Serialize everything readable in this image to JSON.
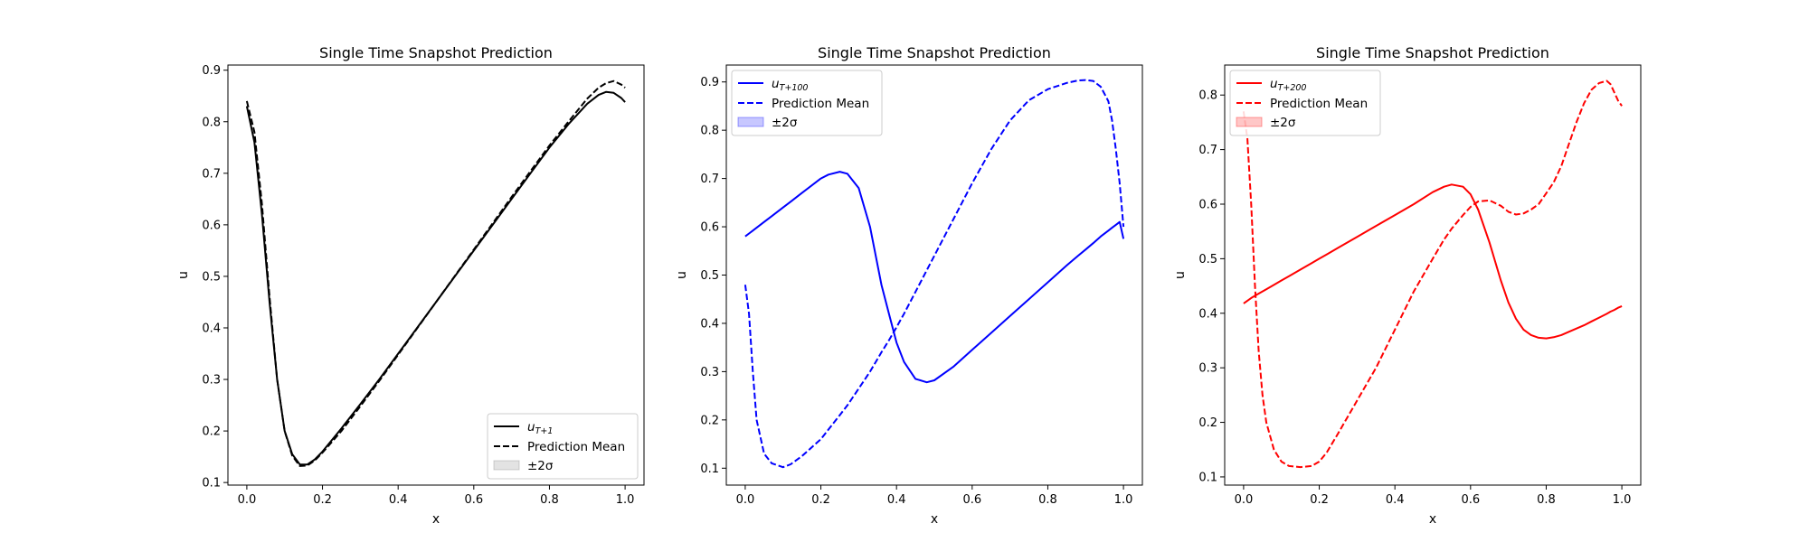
{
  "chart_data": [
    {
      "type": "line",
      "title": "Single Time Snapshot Prediction",
      "xlabel": "x",
      "ylabel": "u",
      "xlim": [
        -0.05,
        1.05
      ],
      "ylim": [
        0.095,
        0.91
      ],
      "xticks": [
        "0.0",
        "0.2",
        "0.4",
        "0.6",
        "0.8",
        "1.0"
      ],
      "yticks": [
        "0.1",
        "0.2",
        "0.3",
        "0.4",
        "0.5",
        "0.6",
        "0.7",
        "0.8",
        "0.9"
      ],
      "color": "#000000",
      "band_color": "#808080",
      "legend_loc": "lower-right",
      "legend": {
        "truth_base": "u",
        "truth_sub": "T+1",
        "mean": "Prediction Mean",
        "band": "±2σ"
      },
      "x": [
        0,
        0.02,
        0.04,
        0.06,
        0.08,
        0.1,
        0.12,
        0.14,
        0.16,
        0.18,
        0.2,
        0.25,
        0.3,
        0.35,
        0.4,
        0.45,
        0.5,
        0.55,
        0.6,
        0.65,
        0.7,
        0.75,
        0.8,
        0.85,
        0.9,
        0.93,
        0.95,
        0.97,
        0.99,
        1.0
      ],
      "series": [
        {
          "role": "truth",
          "values": [
            0.83,
            0.76,
            0.62,
            0.45,
            0.3,
            0.2,
            0.155,
            0.135,
            0.135,
            0.145,
            0.16,
            0.205,
            0.252,
            0.3,
            0.35,
            0.4,
            0.45,
            0.5,
            0.55,
            0.6,
            0.65,
            0.7,
            0.75,
            0.795,
            0.835,
            0.852,
            0.858,
            0.856,
            0.846,
            0.838
          ]
        },
        {
          "role": "mean",
          "values": [
            0.84,
            0.78,
            0.64,
            0.46,
            0.3,
            0.2,
            0.152,
            0.132,
            0.133,
            0.143,
            0.158,
            0.2,
            0.248,
            0.297,
            0.348,
            0.399,
            0.45,
            0.501,
            0.552,
            0.603,
            0.654,
            0.704,
            0.754,
            0.8,
            0.845,
            0.866,
            0.875,
            0.879,
            0.872,
            0.866
          ]
        }
      ]
    },
    {
      "type": "line",
      "title": "Single Time Snapshot Prediction",
      "xlabel": "x",
      "ylabel": "u",
      "xlim": [
        -0.05,
        1.05
      ],
      "ylim": [
        0.065,
        0.935
      ],
      "xticks": [
        "0.0",
        "0.2",
        "0.4",
        "0.6",
        "0.8",
        "1.0"
      ],
      "yticks": [
        "0.1",
        "0.2",
        "0.3",
        "0.4",
        "0.5",
        "0.6",
        "0.7",
        "0.8",
        "0.9"
      ],
      "color": "#0000ff",
      "band_color": "#0000ff",
      "legend_loc": "upper-left",
      "legend": {
        "truth_base": "u",
        "truth_sub": "T+100",
        "mean": "Prediction Mean",
        "band": "±2σ"
      },
      "x": [
        0,
        0.01,
        0.02,
        0.03,
        0.05,
        0.07,
        0.1,
        0.12,
        0.15,
        0.2,
        0.22,
        0.25,
        0.27,
        0.3,
        0.33,
        0.36,
        0.38,
        0.4,
        0.42,
        0.45,
        0.48,
        0.5,
        0.55,
        0.6,
        0.65,
        0.7,
        0.75,
        0.8,
        0.85,
        0.88,
        0.9,
        0.92,
        0.94,
        0.96,
        0.97,
        0.98,
        0.99,
        1.0
      ],
      "series": [
        {
          "role": "truth",
          "values": [
            0.58,
            0.586,
            0.592,
            0.598,
            0.61,
            0.622,
            0.64,
            0.652,
            0.67,
            0.7,
            0.708,
            0.714,
            0.71,
            0.68,
            0.6,
            0.48,
            0.42,
            0.36,
            0.32,
            0.285,
            0.278,
            0.282,
            0.31,
            0.345,
            0.38,
            0.415,
            0.45,
            0.485,
            0.52,
            0.54,
            0.553,
            0.566,
            0.58,
            0.592,
            0.598,
            0.604,
            0.61,
            0.575
          ]
        },
        {
          "role": "mean",
          "values": [
            0.48,
            0.42,
            0.3,
            0.2,
            0.13,
            0.11,
            0.102,
            0.108,
            0.125,
            0.16,
            0.18,
            0.21,
            0.23,
            0.265,
            0.3,
            0.34,
            0.365,
            0.392,
            0.42,
            0.465,
            0.51,
            0.54,
            0.615,
            0.69,
            0.76,
            0.82,
            0.862,
            0.885,
            0.898,
            0.903,
            0.904,
            0.902,
            0.89,
            0.86,
            0.82,
            0.76,
            0.69,
            0.6
          ]
        }
      ]
    },
    {
      "type": "line",
      "title": "Single Time Snapshot Prediction",
      "xlabel": "x",
      "ylabel": "u",
      "xlim": [
        -0.05,
        1.05
      ],
      "ylim": [
        0.085,
        0.855
      ],
      "xticks": [
        "0.0",
        "0.2",
        "0.4",
        "0.6",
        "0.8",
        "1.0"
      ],
      "yticks": [
        "0.1",
        "0.2",
        "0.3",
        "0.4",
        "0.5",
        "0.6",
        "0.7",
        "0.8"
      ],
      "color": "#ff0000",
      "band_color": "#ff0000",
      "legend_loc": "upper-left",
      "legend": {
        "truth_base": "u",
        "truth_sub": "T+200",
        "mean": "Prediction Mean",
        "band": "±2σ"
      },
      "x": [
        0,
        0.01,
        0.02,
        0.03,
        0.04,
        0.05,
        0.06,
        0.08,
        0.1,
        0.12,
        0.15,
        0.18,
        0.2,
        0.22,
        0.25,
        0.3,
        0.35,
        0.4,
        0.45,
        0.5,
        0.53,
        0.55,
        0.58,
        0.6,
        0.62,
        0.65,
        0.68,
        0.7,
        0.72,
        0.74,
        0.76,
        0.78,
        0.8,
        0.82,
        0.84,
        0.86,
        0.88,
        0.9,
        0.92,
        0.94,
        0.96,
        0.97,
        0.98,
        0.99,
        1.0
      ],
      "series": [
        {
          "role": "truth",
          "values": [
            0.418,
            0.423,
            0.428,
            0.432,
            0.436,
            0.44,
            0.444,
            0.452,
            0.46,
            0.468,
            0.48,
            0.492,
            0.5,
            0.508,
            0.52,
            0.54,
            0.56,
            0.58,
            0.6,
            0.622,
            0.632,
            0.636,
            0.632,
            0.618,
            0.59,
            0.53,
            0.46,
            0.42,
            0.39,
            0.37,
            0.36,
            0.355,
            0.354,
            0.356,
            0.36,
            0.366,
            0.372,
            0.378,
            0.385,
            0.392,
            0.399,
            0.403,
            0.406,
            0.41,
            0.413
          ]
        },
        {
          "role": "mean",
          "values": [
            0.77,
            0.72,
            0.6,
            0.45,
            0.33,
            0.25,
            0.2,
            0.15,
            0.128,
            0.12,
            0.118,
            0.12,
            0.128,
            0.145,
            0.18,
            0.24,
            0.3,
            0.37,
            0.44,
            0.5,
            0.535,
            0.555,
            0.58,
            0.595,
            0.605,
            0.607,
            0.597,
            0.586,
            0.581,
            0.583,
            0.59,
            0.6,
            0.62,
            0.64,
            0.67,
            0.71,
            0.75,
            0.785,
            0.81,
            0.822,
            0.826,
            0.82,
            0.805,
            0.79,
            0.78
          ]
        }
      ]
    }
  ]
}
